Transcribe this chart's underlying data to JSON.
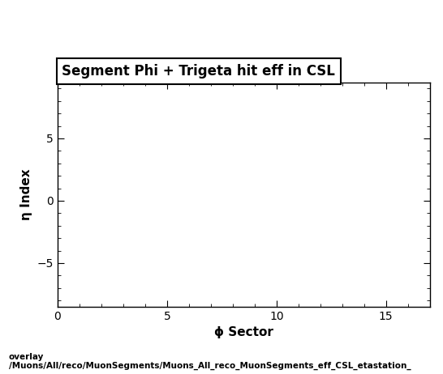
{
  "title": "Segment Phi + Trigeta hit eff in CSL",
  "xlabel": "ϕ Sector",
  "ylabel": "η Index",
  "xlim": [
    0,
    17
  ],
  "ylim": [
    -8.5,
    9.5
  ],
  "xticks": [
    0,
    5,
    10,
    15
  ],
  "yticks": [
    -5,
    0,
    5
  ],
  "footer_line1": "overlay",
  "footer_line2": "/Muons/All/reco/MuonSegments/Muons_All_reco_MuonSegments_eff_CSL_etastation_",
  "background_color": "#ffffff",
  "legend_title": "Segment Phi + Trigeta hit eff in CSL",
  "title_fontsize": 12,
  "label_fontsize": 11,
  "tick_fontsize": 10,
  "footer_fontsize": 7.5
}
